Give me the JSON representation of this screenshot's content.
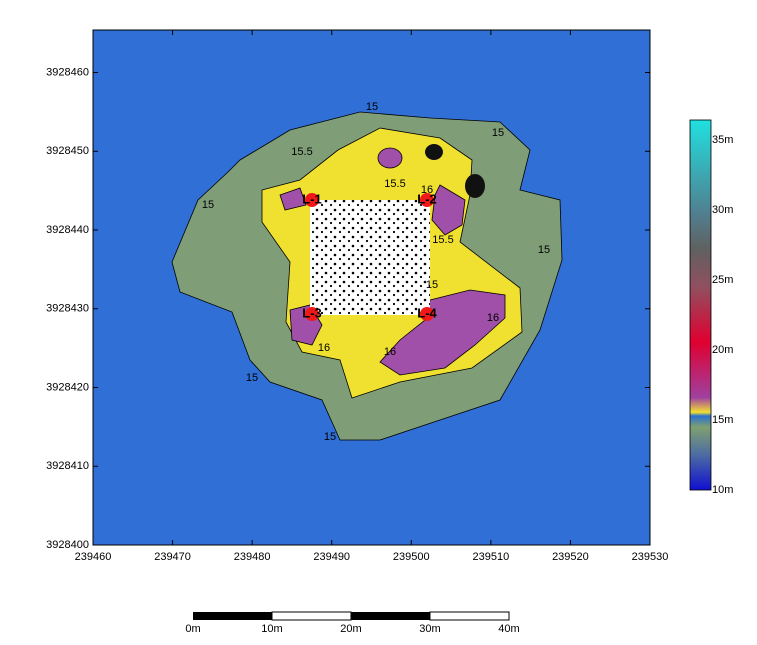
{
  "map": {
    "x_axis": {
      "xlim": [
        239460,
        239530
      ],
      "ticks": [
        239460,
        239470,
        239480,
        239490,
        239500,
        239510,
        239520,
        239530
      ]
    },
    "y_axis": {
      "ylim": [
        3928400,
        3928465.4
      ],
      "ticks": [
        3928400,
        3928410,
        3928420,
        3928430,
        3928440,
        3928450,
        3928460
      ]
    },
    "points": [
      "L-1",
      "L-2",
      "L-3",
      "L-4"
    ],
    "contour_labels": [
      "15",
      "15",
      "15.5",
      "15.5",
      "16",
      "15",
      "15",
      "15.5",
      "15",
      "16",
      "16",
      "16",
      "15",
      "15"
    ],
    "colorbar": {
      "labels": [
        "35m",
        "30m",
        "25m",
        "20m",
        "15m",
        "10m"
      ]
    },
    "scale_bar": {
      "labels": [
        "0m",
        "10m",
        "20m",
        "30m",
        "40m"
      ]
    }
  }
}
